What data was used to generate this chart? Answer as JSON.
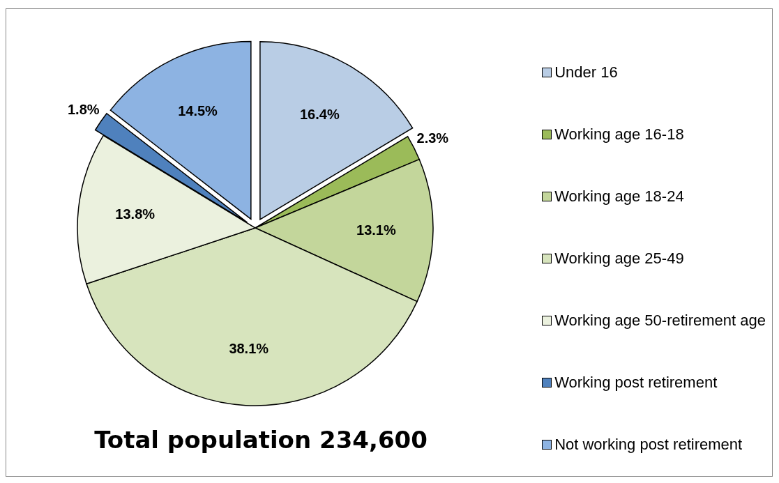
{
  "chart_data": {
    "type": "pie",
    "categories": [
      "Under 16",
      "Working age 16-18",
      "Working age 18-24",
      "Working age 25-49",
      "Working age 50-retirement age",
      "Working post retirement",
      "Not working post retirement"
    ],
    "values": [
      16.4,
      2.3,
      13.1,
      38.1,
      13.8,
      1.8,
      14.5
    ],
    "colors": [
      "#b9cde5",
      "#9bbb59",
      "#c3d69b",
      "#d7e4bd",
      "#ebf1de",
      "#4f81bd",
      "#8db3e2"
    ],
    "value_labels": [
      "16.4%",
      "2.3%",
      "13.1%",
      "38.1%",
      "13.8%",
      "1.8%",
      "14.5%"
    ],
    "legend": "right",
    "annotations": [
      "Total population 234,600"
    ]
  }
}
